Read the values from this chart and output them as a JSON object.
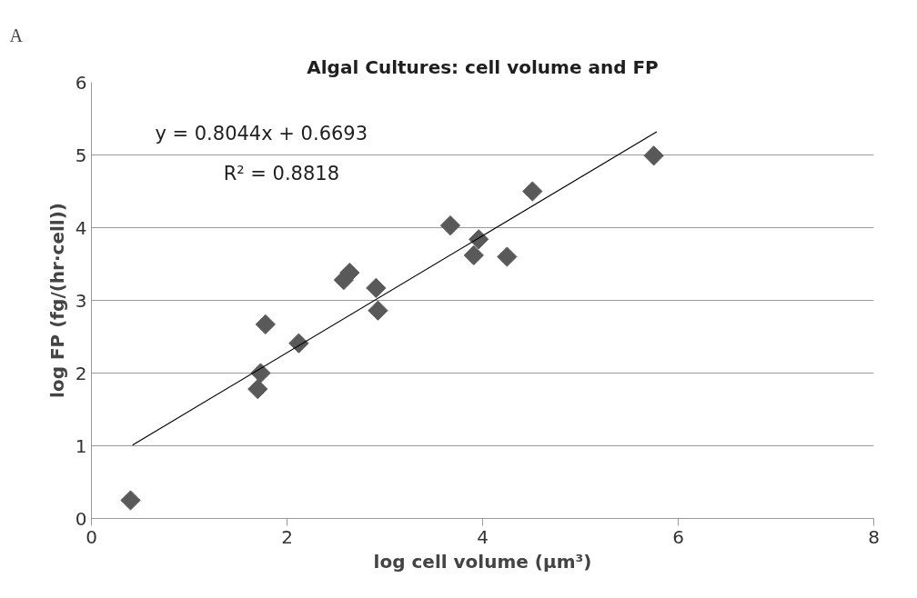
{
  "chart_data": {
    "type": "scatter",
    "title": "Algal Cultures: cell volume and FP",
    "xlabel": "log cell volume (μm³)",
    "ylabel": "log FP (fg/(hr·cell))",
    "annotations": [
      "A",
      "y = 0.8044x + 0.6693",
      "R² = 0.8818"
    ],
    "xlim": [
      0,
      8
    ],
    "xticks": [
      0,
      2,
      4,
      6,
      8
    ],
    "ylim": [
      0,
      6
    ],
    "yticks": [
      0,
      1,
      2,
      3,
      4,
      5,
      6
    ],
    "grid": "y",
    "series": [
      {
        "marker": "diamond",
        "color": "#595959",
        "x": [
          0.4,
          1.78,
          1.7,
          1.73,
          2.12,
          2.58,
          2.64,
          2.91,
          2.93,
          3.67,
          3.96,
          3.91,
          4.25,
          4.51,
          5.75
        ],
        "values": [
          0.25,
          2.67,
          1.78,
          2.0,
          2.41,
          3.28,
          3.38,
          3.17,
          2.86,
          4.03,
          3.84,
          3.62,
          3.6,
          4.5,
          4.99
        ]
      },
      {
        "type": "line",
        "marker": "none",
        "color": "#000000",
        "line_style": "solid",
        "x": [
          0.42,
          5.78
        ],
        "values": [
          1.01,
          5.32
        ]
      }
    ]
  }
}
